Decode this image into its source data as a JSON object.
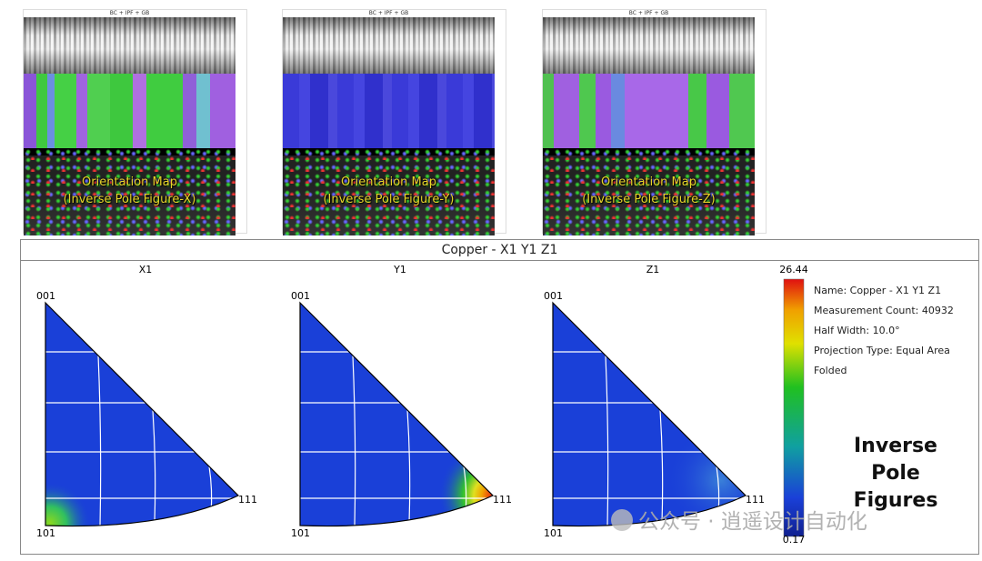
{
  "maps": [
    {
      "title": "BC + IPF + GB",
      "caption": [
        "Orientation Map",
        "(Inverse Pole Figure-X)"
      ]
    },
    {
      "title": "BC + IPF + GB",
      "caption": [
        "Orientation Map",
        "(Inverse Pole Figure-Y)"
      ]
    },
    {
      "title": "BC + IPF + GB",
      "caption": [
        "Orientation Map",
        "(Inverse Pole Figure-Z)"
      ]
    }
  ],
  "pole_figures": {
    "title": "Copper - X1 Y1 Z1",
    "panels": [
      {
        "label": "X1",
        "corners": [
          "001",
          "101",
          "111"
        ]
      },
      {
        "label": "Y1",
        "corners": [
          "001",
          "101",
          "111"
        ]
      },
      {
        "label": "Z1",
        "corners": [
          "001",
          "101",
          "111"
        ]
      }
    ],
    "colorbar": {
      "max": 26.44,
      "min": 0.17
    },
    "info": [
      "Name: Copper - X1 Y1 Z1",
      "Measurement Count: 40932",
      "Half Width: 10.0°",
      "Projection Type: Equal Area",
      "Folded"
    ],
    "side_label": [
      "Inverse",
      "Pole",
      "Figures"
    ]
  },
  "watermark": "公众号 · 逍遥设计自动化"
}
